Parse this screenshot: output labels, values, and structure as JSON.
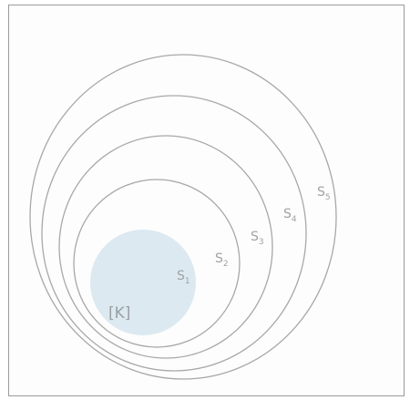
{
  "diagram": {
    "disk_label": "[K]",
    "rings": [
      {
        "letter": "S",
        "index": "1"
      },
      {
        "letter": "S",
        "index": "2"
      },
      {
        "letter": "S",
        "index": "3"
      },
      {
        "letter": "S",
        "index": "4"
      },
      {
        "letter": "S",
        "index": "5"
      }
    ],
    "colors": {
      "disk_fill": "#dce9f1",
      "ring_stroke": "#a8a8a8",
      "label_text": "#a2a2a2",
      "frame_stroke": "#9a9a9a"
    }
  }
}
